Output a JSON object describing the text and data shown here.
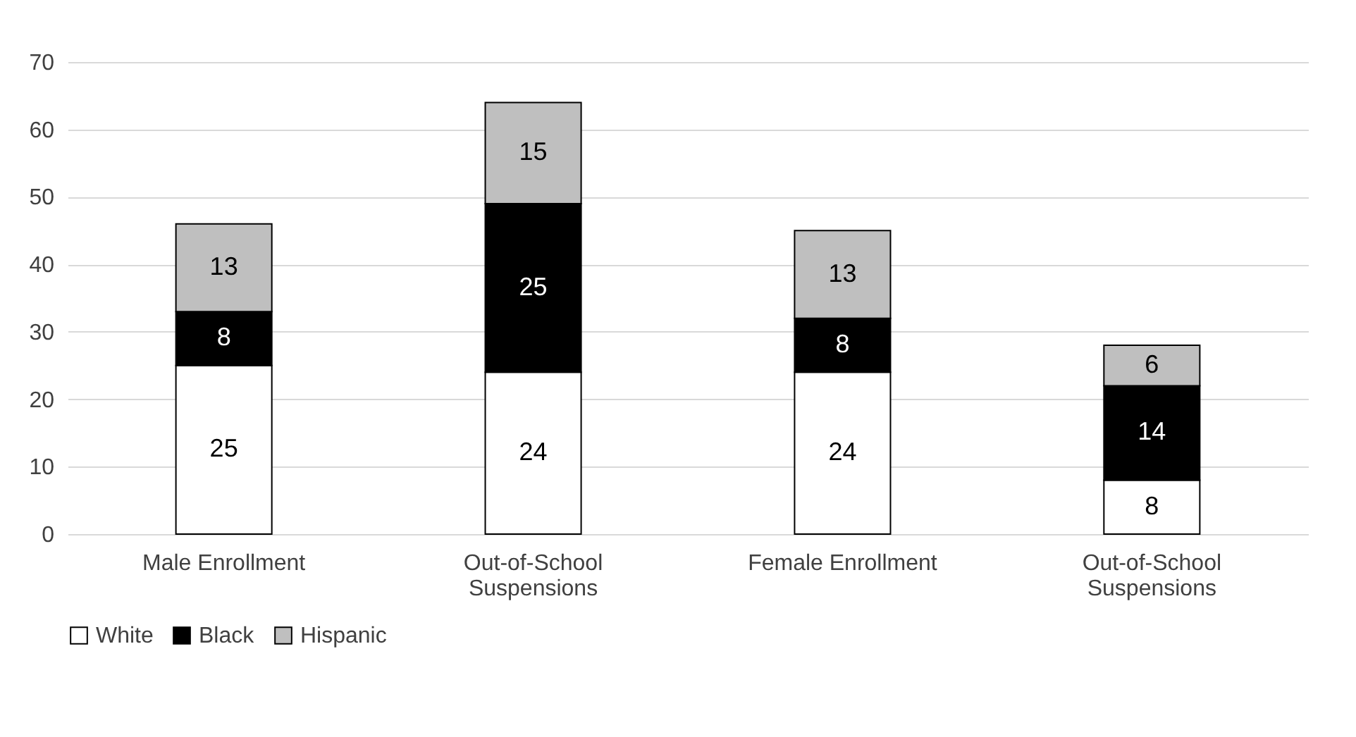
{
  "chart_data": {
    "type": "bar",
    "stacked": true,
    "categories": [
      "Male Enrollment",
      "Out-of-School Suspensions",
      "Female Enrollment",
      "Out-of-School Suspensions"
    ],
    "series": [
      {
        "name": "White",
        "color": "#ffffff",
        "values": [
          25,
          24,
          24,
          8
        ]
      },
      {
        "name": "Black",
        "color": "#000000",
        "values": [
          8,
          25,
          8,
          14
        ]
      },
      {
        "name": "Hispanic",
        "color": "#bfbfbf",
        "values": [
          13,
          15,
          13,
          6
        ]
      }
    ],
    "ylim": [
      0,
      70
    ],
    "yticks": [
      0,
      10,
      20,
      30,
      40,
      50,
      60,
      70
    ],
    "grid": "y",
    "legend": "bottom",
    "data_labels": true
  }
}
